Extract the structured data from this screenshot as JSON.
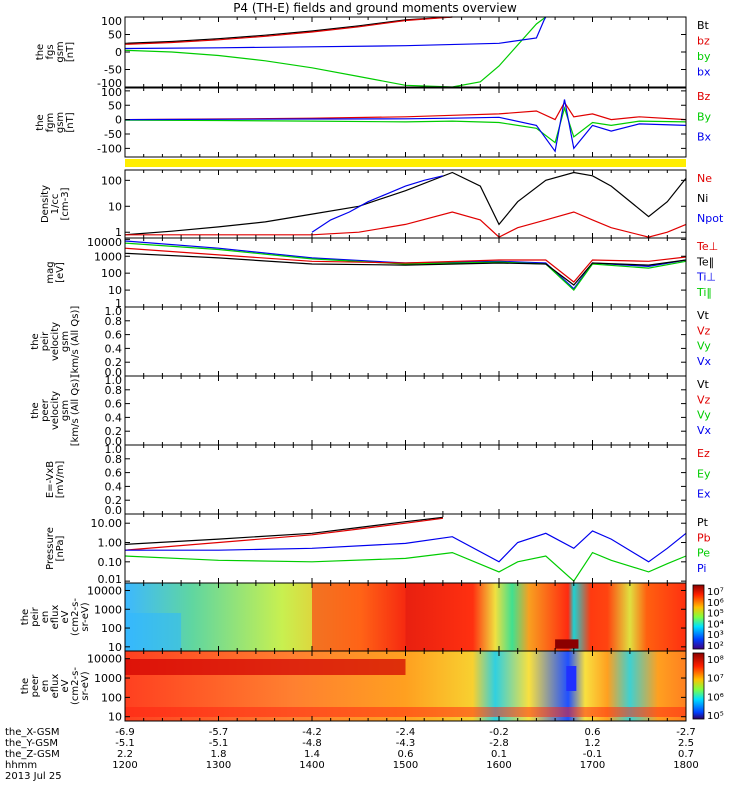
{
  "title": "P4 (TH-E) fields and ground moments overview",
  "colors": {
    "black": "#000000",
    "red": "#e00000",
    "green": "#00cc00",
    "blue": "#0000ee",
    "status_bar": "#ffee00"
  },
  "chart_data": [
    {
      "type": "line",
      "id": "fgs",
      "ylabel": [
        "the",
        "fgs",
        "gsm",
        "[nT]"
      ],
      "ylim": [
        -100,
        100
      ],
      "yticks": [
        100,
        50,
        0,
        -50,
        -100
      ],
      "legend": [
        {
          "name": "Bt",
          "color": "#000000"
        },
        {
          "name": "bz",
          "color": "#e00000"
        },
        {
          "name": "by",
          "color": "#00cc00"
        },
        {
          "name": "bx",
          "color": "#0000ee"
        }
      ],
      "series": [
        {
          "name": "Bt",
          "color": "#000000",
          "x": [
            1200,
            1250,
            1300,
            1350,
            1400,
            1450,
            1500,
            1550
          ],
          "y": [
            25,
            30,
            38,
            48,
            60,
            75,
            92,
            100
          ]
        },
        {
          "name": "bz",
          "color": "#e00000",
          "x": [
            1200,
            1250,
            1300,
            1350,
            1400,
            1450,
            1500,
            1550
          ],
          "y": [
            22,
            27,
            35,
            45,
            57,
            72,
            90,
            100
          ]
        },
        {
          "name": "by",
          "color": "#00cc00",
          "x": [
            1200,
            1250,
            1300,
            1350,
            1400,
            1450,
            1500,
            1550,
            1580,
            1600,
            1640,
            1650
          ],
          "y": [
            5,
            0,
            -10,
            -25,
            -45,
            -70,
            -95,
            -100,
            -85,
            -40,
            80,
            100
          ]
        },
        {
          "name": "bx",
          "color": "#0000ee",
          "x": [
            1200,
            1300,
            1400,
            1500,
            1600,
            1640,
            1648,
            1650
          ],
          "y": [
            10,
            12,
            15,
            18,
            25,
            40,
            90,
            100
          ]
        }
      ]
    },
    {
      "type": "line",
      "id": "fgm",
      "ylabel": [
        "the",
        "fgm",
        "gsm",
        "[nT]"
      ],
      "ylim": [
        -130,
        110
      ],
      "yticks": [
        100,
        50,
        0,
        -50,
        -100
      ],
      "legend": [
        {
          "name": "Bz",
          "color": "#e00000"
        },
        {
          "name": "By",
          "color": "#00cc00"
        },
        {
          "name": "Bx",
          "color": "#0000ee"
        }
      ],
      "series": [
        {
          "name": "Bz",
          "color": "#e00000",
          "x": [
            1200,
            1300,
            1400,
            1500,
            1550,
            1600,
            1640,
            1660,
            1670,
            1680,
            1700,
            1720,
            1750,
            1800
          ],
          "y": [
            0,
            2,
            5,
            10,
            15,
            20,
            30,
            0,
            60,
            10,
            20,
            0,
            10,
            0
          ]
        },
        {
          "name": "By",
          "color": "#00cc00",
          "x": [
            1200,
            1300,
            1400,
            1500,
            1550,
            1600,
            1640,
            1660,
            1670,
            1680,
            1700,
            1720,
            1750,
            1800
          ],
          "y": [
            -2,
            -3,
            -5,
            -8,
            -5,
            -10,
            -30,
            -80,
            40,
            -60,
            -10,
            -20,
            -5,
            -8
          ]
        },
        {
          "name": "Bx",
          "color": "#0000ee",
          "x": [
            1200,
            1300,
            1400,
            1500,
            1550,
            1600,
            1640,
            1660,
            1670,
            1680,
            1700,
            1720,
            1750,
            1800
          ],
          "y": [
            0,
            1,
            2,
            3,
            5,
            8,
            -20,
            -110,
            70,
            -100,
            -20,
            -40,
            -15,
            -20
          ]
        }
      ]
    },
    {
      "type": "line",
      "id": "density",
      "ylabel": [
        "Density",
        "1/cc",
        "[cm-3]"
      ],
      "ylog": true,
      "ylim": [
        0.6,
        250
      ],
      "yticks": [
        100,
        10,
        1
      ],
      "ytick_labels": [
        "100",
        "10",
        "1"
      ],
      "legend": [
        {
          "name": "Ne",
          "color": "#e00000"
        },
        {
          "name": "Ni",
          "color": "#000000"
        },
        {
          "name": "Npot",
          "color": "#0000ee"
        }
      ],
      "series": [
        {
          "name": "Ni",
          "color": "#000000",
          "x": [
            1200,
            1250,
            1300,
            1350,
            1400,
            1450,
            1500,
            1550,
            1580,
            1600,
            1620,
            1650,
            1680,
            1700,
            1720,
            1760,
            1780,
            1800
          ],
          "y": [
            0.8,
            1.1,
            1.6,
            2.5,
            5,
            10,
            40,
            200,
            60,
            2,
            15,
            100,
            200,
            150,
            60,
            4,
            15,
            120
          ]
        },
        {
          "name": "Ne",
          "color": "#e00000",
          "x": [
            1200,
            1300,
            1400,
            1450,
            1500,
            1550,
            1580,
            1600,
            1620,
            1650,
            1680,
            1700,
            1720,
            1760,
            1780,
            1800
          ],
          "y": [
            0.8,
            0.8,
            0.8,
            1.0,
            2.0,
            6,
            3,
            0.65,
            1.5,
            3,
            6,
            3,
            1.5,
            0.65,
            1.0,
            2.0
          ]
        },
        {
          "name": "Npot",
          "color": "#0000ee",
          "x": [
            1400,
            1420,
            1440,
            1460,
            1480,
            1500,
            1520,
            1540
          ],
          "y": [
            1,
            3,
            6,
            15,
            30,
            60,
            100,
            150
          ]
        }
      ]
    },
    {
      "type": "line",
      "id": "temperature",
      "ylabel": [
        "mag",
        "[eV]"
      ],
      "ylog": true,
      "ylim": [
        1,
        12000
      ],
      "yticks": [
        10000,
        1000,
        100,
        10,
        1
      ],
      "ytick_labels": [
        "10000",
        "1000",
        "100",
        "10",
        "1"
      ],
      "legend": [
        {
          "name": "Te⊥",
          "color": "#e00000"
        },
        {
          "name": "Te‖",
          "color": "#000000"
        },
        {
          "name": "Ti⊥",
          "color": "#0000ee"
        },
        {
          "name": "Ti‖",
          "color": "#00cc00"
        }
      ],
      "series": [
        {
          "name": "Ti⊥",
          "color": "#0000ee",
          "x": [
            1200,
            1300,
            1400,
            1500,
            1600,
            1650,
            1680,
            1700,
            1760,
            1800
          ],
          "y": [
            8000,
            3000,
            800,
            400,
            500,
            400,
            12,
            400,
            250,
            600
          ]
        },
        {
          "name": "Ti‖",
          "color": "#00cc00",
          "x": [
            1200,
            1300,
            1400,
            1500,
            1600,
            1650,
            1680,
            1700,
            1760,
            1800
          ],
          "y": [
            6000,
            2500,
            700,
            350,
            450,
            350,
            10,
            350,
            200,
            500
          ]
        },
        {
          "name": "Te⊥",
          "color": "#e00000",
          "x": [
            1200,
            1300,
            1400,
            1500,
            1600,
            1650,
            1680,
            1700,
            1760,
            1800
          ],
          "y": [
            3000,
            1200,
            500,
            400,
            600,
            600,
            30,
            600,
            500,
            900
          ]
        },
        {
          "name": "Te‖",
          "color": "#000000",
          "x": [
            1200,
            1300,
            1400,
            1500,
            1600,
            1650,
            1680,
            1700,
            1760,
            1800
          ],
          "y": [
            1500,
            800,
            350,
            300,
            400,
            350,
            20,
            400,
            300,
            600
          ]
        }
      ]
    },
    {
      "type": "line",
      "id": "peir_velocity",
      "ylabel": [
        "the",
        "peir",
        "velocity",
        "gsm",
        "[km/s (All Qs)]"
      ],
      "ylim": [
        0,
        1
      ],
      "yticks": [
        1.0,
        0.8,
        0.6,
        0.4,
        0.2,
        0.0
      ],
      "ytick_labels": [
        "1.0",
        "0.8",
        "0.6",
        "0.4",
        "0.2",
        "0.0"
      ],
      "legend": [
        {
          "name": "Vt",
          "color": "#000000"
        },
        {
          "name": "Vz",
          "color": "#e00000"
        },
        {
          "name": "Vy",
          "color": "#00cc00"
        },
        {
          "name": "Vx",
          "color": "#0000ee"
        }
      ],
      "series": []
    },
    {
      "type": "line",
      "id": "peer_velocity",
      "ylabel": [
        "the",
        "peer",
        "velocity",
        "gsm",
        "[km/s (All Qs)]"
      ],
      "ylim": [
        0,
        1
      ],
      "yticks": [
        1.0,
        0.8,
        0.6,
        0.4,
        0.2,
        0.0
      ],
      "ytick_labels": [
        "1.0",
        "0.8",
        "0.6",
        "0.4",
        "0.2",
        "0.0"
      ],
      "legend": [
        {
          "name": "Vt",
          "color": "#000000"
        },
        {
          "name": "Vz",
          "color": "#e00000"
        },
        {
          "name": "Vy",
          "color": "#00cc00"
        },
        {
          "name": "Vx",
          "color": "#0000ee"
        }
      ],
      "series": []
    },
    {
      "type": "line",
      "id": "efield",
      "ylabel": [
        "E=-VxB",
        "[mV/m]"
      ],
      "ylim": [
        0,
        1
      ],
      "yticks": [
        1.0,
        0.8,
        0.6,
        0.4,
        0.2,
        0.0
      ],
      "ytick_labels": [
        "1.0",
        "0.8",
        "0.6",
        "0.4",
        "0.2",
        "0.0"
      ],
      "legend": [
        {
          "name": "Ez",
          "color": "#e00000"
        },
        {
          "name": "Ey",
          "color": "#00cc00"
        },
        {
          "name": "Ex",
          "color": "#0000ee"
        }
      ],
      "series": []
    },
    {
      "type": "line",
      "id": "pressure",
      "ylabel": [
        "Pressure",
        "[nPa]"
      ],
      "ylog": true,
      "ylim": [
        0.008,
        30
      ],
      "yticks": [
        10,
        1,
        0.1,
        0.01
      ],
      "ytick_labels": [
        "10.00",
        "1.00",
        "0.10",
        "0.01"
      ],
      "legend": [
        {
          "name": "Pt",
          "color": "#000000"
        },
        {
          "name": "Pb",
          "color": "#e00000"
        },
        {
          "name": "Pe",
          "color": "#00cc00"
        },
        {
          "name": "Pi",
          "color": "#0000ee"
        }
      ],
      "series": [
        {
          "name": "Pt",
          "color": "#000000",
          "x": [
            1200,
            1300,
            1400,
            1450,
            1500,
            1540
          ],
          "y": [
            0.8,
            1.5,
            3,
            6,
            12,
            20
          ]
        },
        {
          "name": "Pb",
          "color": "#e00000",
          "x": [
            1200,
            1300,
            1400,
            1450,
            1500,
            1540
          ],
          "y": [
            0.4,
            1.0,
            2.5,
            5,
            10,
            18
          ]
        },
        {
          "name": "Pi",
          "color": "#0000ee",
          "x": [
            1200,
            1300,
            1400,
            1500,
            1550,
            1600,
            1620,
            1650,
            1680,
            1700,
            1720,
            1760,
            1780,
            1800
          ],
          "y": [
            0.4,
            0.4,
            0.5,
            0.9,
            2,
            0.1,
            1,
            3,
            0.5,
            4,
            1.5,
            0.1,
            0.5,
            3
          ]
        },
        {
          "name": "Pe",
          "color": "#00cc00",
          "x": [
            1200,
            1300,
            1400,
            1500,
            1550,
            1600,
            1620,
            1650,
            1680,
            1700,
            1720,
            1760,
            1780,
            1800
          ],
          "y": [
            0.2,
            0.12,
            0.1,
            0.15,
            0.3,
            0.03,
            0.1,
            0.2,
            0.01,
            0.3,
            0.12,
            0.03,
            0.08,
            0.2
          ]
        }
      ]
    },
    {
      "type": "heatmap",
      "id": "peir_eflux",
      "ylabel": [
        "the",
        "peir",
        "en",
        "eflux",
        "eV",
        "(cm2-s-",
        "sr-eV)"
      ],
      "ylog": true,
      "ylim": [
        6,
        25000
      ],
      "yticks": [
        10000,
        1000,
        100,
        10
      ],
      "ytick_labels": [
        "10000",
        "1000",
        "100",
        "10"
      ],
      "colorbar_labels": [
        "10⁷",
        "10⁶",
        "10⁵",
        "10⁴",
        "10³",
        "10²"
      ]
    },
    {
      "type": "heatmap",
      "id": "peer_eflux",
      "ylabel": [
        "the",
        "peer",
        "en",
        "eflux",
        "eV",
        "(cm2-s-",
        "sr-eV)"
      ],
      "ylog": true,
      "ylim": [
        6,
        25000
      ],
      "yticks": [
        10000,
        1000,
        100,
        10
      ],
      "ytick_labels": [
        "10000",
        "1000",
        "100",
        "10"
      ],
      "colorbar_labels": [
        "10⁸",
        "10⁷",
        "10⁶",
        "10⁵"
      ]
    }
  ],
  "xaxis": {
    "range": [
      1200,
      1800
    ],
    "rows": [
      {
        "label": "the_X-GSM",
        "values": [
          "-6.9",
          "-5.7",
          "-4.2",
          "-2.4",
          "-0.2",
          "0.6",
          "-2.7"
        ]
      },
      {
        "label": "the_Y-GSM",
        "values": [
          "-5.1",
          "-5.1",
          "-4.8",
          "-4.3",
          "-2.8",
          "1.2",
          "2.5"
        ]
      },
      {
        "label": "the_Z-GSM",
        "values": [
          "2.2",
          "1.8",
          "1.4",
          "0.6",
          "0.1",
          "-0.1",
          "0.7"
        ]
      },
      {
        "label": "hhmm",
        "values": [
          "1200",
          "1300",
          "1400",
          "1500",
          "1600",
          "1700",
          "1800"
        ]
      }
    ],
    "date": "2013 Jul 25"
  }
}
